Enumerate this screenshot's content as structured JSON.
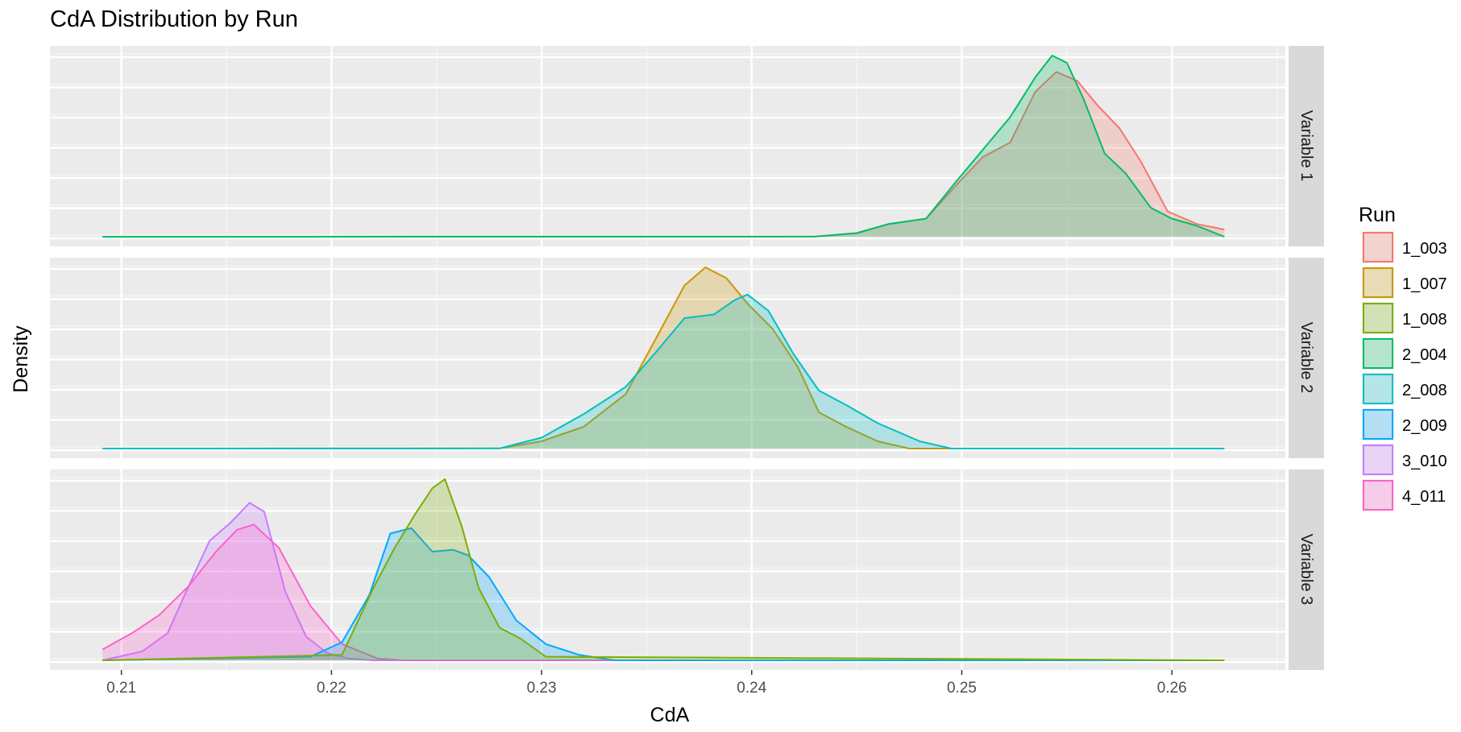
{
  "chart_data": {
    "type": "area",
    "title": "CdA Distribution by Run",
    "xlabel": "CdA",
    "ylabel": "Density",
    "xlim": [
      0.2066,
      0.2654
    ],
    "x_ticks": [
      0.21,
      0.22,
      0.23,
      0.24,
      0.25,
      0.26
    ],
    "x_tick_labels": [
      "0.21",
      "0.22",
      "0.23",
      "0.24",
      "0.25",
      "0.26"
    ],
    "grid": true,
    "legend": {
      "title": "Run",
      "position": "right"
    },
    "colors": {
      "1_003": "#F8766D",
      "1_007": "#CD9600",
      "1_008": "#7CAE00",
      "2_004": "#00BE67",
      "2_008": "#00BFC4",
      "2_009": "#00A9FF",
      "3_010": "#C77CFF",
      "4_011": "#FF61CC"
    },
    "facets": [
      {
        "label": "Variable 1",
        "series": [
          {
            "name": "1_003",
            "x": [
              0.2091,
              0.243,
              0.245,
              0.2465,
              0.2483,
              0.2497,
              0.251,
              0.2523,
              0.2535,
              0.2545,
              0.2555,
              0.2565,
              0.2575,
              0.2585,
              0.2598,
              0.2612,
              0.2625
            ],
            "y": [
              0,
              0.001,
              0.02,
              0.07,
              0.1,
              0.28,
              0.44,
              0.52,
              0.8,
              0.91,
              0.86,
              0.72,
              0.6,
              0.42,
              0.14,
              0.07,
              0.04
            ]
          },
          {
            "name": "2_004",
            "x": [
              0.2091,
              0.243,
              0.245,
              0.2465,
              0.2483,
              0.2497,
              0.251,
              0.2523,
              0.2535,
              0.2543,
              0.255,
              0.2558,
              0.2568,
              0.2578,
              0.259,
              0.26,
              0.2612,
              0.2625
            ],
            "y": [
              0,
              0.001,
              0.02,
              0.07,
              0.1,
              0.3,
              0.48,
              0.66,
              0.88,
              1.0,
              0.96,
              0.76,
              0.46,
              0.35,
              0.16,
              0.1,
              0.06,
              0.0
            ]
          }
        ]
      },
      {
        "label": "Variable 2",
        "series": [
          {
            "name": "1_007",
            "x": [
              0.2091,
              0.228,
              0.23,
              0.232,
              0.234,
              0.2355,
              0.2368,
              0.2378,
              0.2388,
              0.2398,
              0.241,
              0.2422,
              0.2432,
              0.2445,
              0.246,
              0.2475,
              0.2625
            ],
            "y": [
              0,
              0.001,
              0.04,
              0.12,
              0.3,
              0.62,
              0.9,
              1.0,
              0.94,
              0.8,
              0.66,
              0.45,
              0.2,
              0.12,
              0.04,
              0.0,
              0
            ]
          },
          {
            "name": "2_008",
            "x": [
              0.2091,
              0.228,
              0.23,
              0.232,
              0.234,
              0.2355,
              0.2368,
              0.2382,
              0.2392,
              0.2398,
              0.2408,
              0.242,
              0.2432,
              0.2445,
              0.246,
              0.248,
              0.2495,
              0.2625
            ],
            "y": [
              0,
              0.001,
              0.06,
              0.19,
              0.34,
              0.54,
              0.72,
              0.74,
              0.82,
              0.85,
              0.76,
              0.52,
              0.32,
              0.24,
              0.14,
              0.04,
              0.0,
              0
            ]
          }
        ]
      },
      {
        "label": "Variable 3",
        "series": [
          {
            "name": "3_010",
            "x": [
              0.2091,
              0.211,
              0.2122,
              0.2132,
              0.2142,
              0.2152,
              0.2161,
              0.2168,
              0.2178,
              0.2188,
              0.2198,
              0.2208,
              0.222,
              0.2625
            ],
            "y": [
              0,
              0.05,
              0.15,
              0.41,
              0.66,
              0.76,
              0.87,
              0.82,
              0.38,
              0.13,
              0.04,
              0.01,
              0,
              0
            ]
          },
          {
            "name": "4_011",
            "x": [
              0.2091,
              0.2105,
              0.2118,
              0.2132,
              0.2145,
              0.2155,
              0.2163,
              0.2175,
              0.219,
              0.2205,
              0.2222,
              0.2235,
              0.2625
            ],
            "y": [
              0.06,
              0.15,
              0.25,
              0.41,
              0.6,
              0.72,
              0.75,
              0.62,
              0.3,
              0.09,
              0.01,
              0,
              0
            ]
          },
          {
            "name": "2_009",
            "x": [
              0.2091,
              0.219,
              0.2205,
              0.2218,
              0.2228,
              0.2238,
              0.2248,
              0.2258,
              0.2265,
              0.2275,
              0.2288,
              0.2302,
              0.2318,
              0.2335,
              0.2625
            ],
            "y": [
              0,
              0.02,
              0.1,
              0.36,
              0.7,
              0.73,
              0.6,
              0.61,
              0.58,
              0.46,
              0.22,
              0.09,
              0.03,
              0,
              0
            ]
          },
          {
            "name": "1_008",
            "x": [
              0.2091,
              0.2205,
              0.222,
              0.223,
              0.224,
              0.2248,
              0.2254,
              0.2262,
              0.227,
              0.228,
              0.229,
              0.2302,
              0.2625
            ],
            "y": [
              0,
              0.03,
              0.4,
              0.62,
              0.81,
              0.95,
              1.0,
              0.74,
              0.4,
              0.18,
              0.12,
              0.02,
              0
            ]
          }
        ]
      }
    ]
  }
}
